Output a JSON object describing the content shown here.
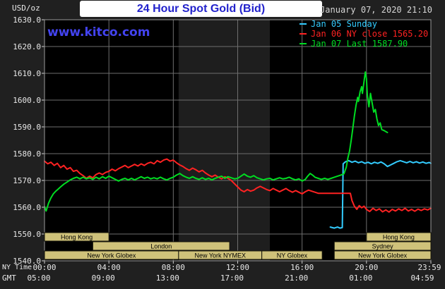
{
  "header": {
    "units_label": "USD/oz",
    "title": "24 Hour Spot Gold (Bid)",
    "datetime": "January 07, 2020 21:10",
    "watermark": "www.kitco.com"
  },
  "legend": [
    {
      "label": "Jan 05 Sunday",
      "color": "#33ccff"
    },
    {
      "label": "Jan 06 NY close 1565.20",
      "color": "#ff2222"
    },
    {
      "label": "Jan 07 Last 1587.90",
      "color": "#00dd22"
    }
  ],
  "colors": {
    "page_bg": "#202020",
    "plot_bg": "#000000",
    "band": "#1e1e1e",
    "grid": "#6e6e6e",
    "border": "#9a9a9a",
    "tick": "#d0d0d0",
    "session_bg": "#cfc27a",
    "session_border": "#14140a",
    "session_text": "#000000",
    "title_blue": "#2222cc",
    "watermark_blue": "#4343f0",
    "axis_text": "#e8e8e8",
    "datetime_text": "#d6d6d6"
  },
  "sessions": {
    "rows": [
      [
        {
          "label": "Hong Kong",
          "start": 0,
          "end": 4
        },
        {
          "label": "Hong Kong",
          "start": 20,
          "end": 24
        }
      ],
      [
        {
          "label": "London",
          "start": 3,
          "end": 11.5
        },
        {
          "label": "Sydney",
          "start": 18,
          "end": 24
        }
      ],
      [
        {
          "label": "New York Globex",
          "start": 0,
          "end": 8.33
        },
        {
          "label": "New York NYMEX",
          "start": 8.33,
          "end": 13.5
        },
        {
          "label": "NY Globex",
          "start": 13.5,
          "end": 17.25
        },
        {
          "label": "New York Globex",
          "start": 18,
          "end": 24
        }
      ]
    ]
  },
  "chart_data": {
    "type": "line",
    "title": "24 Hour Spot Gold (Bid)",
    "ylabel": "USD/oz",
    "xlabel": "NY Time / GMT",
    "ylim": [
      1540,
      1630
    ],
    "xlim_hours": [
      0,
      24
    ],
    "grid": true,
    "legend_position": "top-right",
    "axis_row_labels": {
      "ny": "NY Time",
      "gmt": "GMT"
    },
    "y_ticks": [
      1630,
      1620,
      1610,
      1600,
      1590,
      1580,
      1570,
      1560,
      1550,
      1540
    ],
    "x_ticks": [
      {
        "hour": 0,
        "ny": "00:00",
        "gmt": "05:00"
      },
      {
        "hour": 4,
        "ny": "04:00",
        "gmt": "09:00"
      },
      {
        "hour": 8,
        "ny": "08:00",
        "gmt": "13:00"
      },
      {
        "hour": 12,
        "ny": "12:00",
        "gmt": "17:00"
      },
      {
        "hour": 16,
        "ny": "16:00",
        "gmt": "21:00"
      },
      {
        "hour": 20,
        "ny": "20:00",
        "gmt": "01:00"
      },
      {
        "hour": 24,
        "ny": "23:59",
        "gmt": "04:59"
      }
    ],
    "nymex_band_hours": [
      8.33,
      14.0
    ],
    "series": [
      {
        "name": "Jan 05 Sunday",
        "color": "#33ccff",
        "last_value": null,
        "points": [
          [
            17.75,
            1552.6
          ],
          [
            18.0,
            1552.2
          ],
          [
            18.2,
            1552.6
          ],
          [
            18.35,
            1552.2
          ],
          [
            18.5,
            1552.4
          ],
          [
            18.55,
            1576.2
          ],
          [
            18.7,
            1577.0
          ],
          [
            18.9,
            1577.4
          ],
          [
            19.1,
            1576.8
          ],
          [
            19.3,
            1577.2
          ],
          [
            19.5,
            1576.6
          ],
          [
            19.7,
            1577.0
          ],
          [
            19.9,
            1576.4
          ],
          [
            20.1,
            1576.8
          ],
          [
            20.3,
            1576.2
          ],
          [
            20.5,
            1576.8
          ],
          [
            20.7,
            1576.4
          ],
          [
            20.9,
            1576.9
          ],
          [
            21.1,
            1576.2
          ],
          [
            21.3,
            1575.2
          ],
          [
            21.5,
            1575.8
          ],
          [
            21.7,
            1576.4
          ],
          [
            21.9,
            1577.0
          ],
          [
            22.1,
            1577.4
          ],
          [
            22.3,
            1577.0
          ],
          [
            22.5,
            1576.6
          ],
          [
            22.7,
            1577.1
          ],
          [
            22.9,
            1576.6
          ],
          [
            23.1,
            1577.0
          ],
          [
            23.3,
            1576.5
          ],
          [
            23.5,
            1576.9
          ],
          [
            23.7,
            1576.4
          ],
          [
            23.9,
            1576.7
          ],
          [
            24,
            1576.4
          ]
        ]
      },
      {
        "name": "Jan 06 NY close 1565.20",
        "color": "#ff2222",
        "last_value": 1565.2,
        "points": [
          [
            0,
            1577.2
          ],
          [
            0.2,
            1576.2
          ],
          [
            0.4,
            1576.8
          ],
          [
            0.6,
            1575.6
          ],
          [
            0.8,
            1576.4
          ],
          [
            1,
            1574.8
          ],
          [
            1.2,
            1575.6
          ],
          [
            1.4,
            1574.2
          ],
          [
            1.6,
            1574.8
          ],
          [
            1.8,
            1573.4
          ],
          [
            2,
            1573.8
          ],
          [
            2.2,
            1572.6
          ],
          [
            2.4,
            1571.8
          ],
          [
            2.6,
            1570.8
          ],
          [
            2.8,
            1571.6
          ],
          [
            3,
            1571.0
          ],
          [
            3.2,
            1572.2
          ],
          [
            3.4,
            1572.8
          ],
          [
            3.6,
            1572.2
          ],
          [
            3.8,
            1573.0
          ],
          [
            4,
            1573.4
          ],
          [
            4.2,
            1574.2
          ],
          [
            4.4,
            1573.6
          ],
          [
            4.6,
            1574.4
          ],
          [
            4.8,
            1575.0
          ],
          [
            5,
            1575.6
          ],
          [
            5.2,
            1574.8
          ],
          [
            5.4,
            1575.4
          ],
          [
            5.6,
            1576.0
          ],
          [
            5.8,
            1575.4
          ],
          [
            6,
            1576.2
          ],
          [
            6.2,
            1575.6
          ],
          [
            6.4,
            1576.4
          ],
          [
            6.6,
            1576.8
          ],
          [
            6.8,
            1576.2
          ],
          [
            7,
            1577.4
          ],
          [
            7.2,
            1576.8
          ],
          [
            7.4,
            1577.6
          ],
          [
            7.6,
            1578.0
          ],
          [
            7.8,
            1577.2
          ],
          [
            8,
            1577.6
          ],
          [
            8.2,
            1576.6
          ],
          [
            8.4,
            1575.8
          ],
          [
            8.6,
            1575.2
          ],
          [
            8.8,
            1574.4
          ],
          [
            9,
            1573.8
          ],
          [
            9.2,
            1574.6
          ],
          [
            9.4,
            1574.0
          ],
          [
            9.6,
            1573.2
          ],
          [
            9.8,
            1573.8
          ],
          [
            10,
            1572.8
          ],
          [
            10.2,
            1572.0
          ],
          [
            10.4,
            1571.4
          ],
          [
            10.6,
            1572.0
          ],
          [
            10.8,
            1571.2
          ],
          [
            11,
            1570.6
          ],
          [
            11.2,
            1571.4
          ],
          [
            11.4,
            1570.8
          ],
          [
            11.6,
            1570.0
          ],
          [
            11.8,
            1568.8
          ],
          [
            12,
            1567.6
          ],
          [
            12.2,
            1566.4
          ],
          [
            12.4,
            1565.8
          ],
          [
            12.6,
            1566.6
          ],
          [
            12.8,
            1566.0
          ],
          [
            13,
            1566.4
          ],
          [
            13.2,
            1567.2
          ],
          [
            13.4,
            1567.8
          ],
          [
            13.6,
            1567.2
          ],
          [
            13.8,
            1566.6
          ],
          [
            14,
            1566.2
          ],
          [
            14.2,
            1567.0
          ],
          [
            14.4,
            1566.4
          ],
          [
            14.6,
            1565.8
          ],
          [
            14.8,
            1566.4
          ],
          [
            15,
            1567.0
          ],
          [
            15.2,
            1566.2
          ],
          [
            15.4,
            1565.6
          ],
          [
            15.6,
            1566.2
          ],
          [
            15.8,
            1565.6
          ],
          [
            16,
            1565.0
          ],
          [
            16.2,
            1565.8
          ],
          [
            16.4,
            1566.4
          ],
          [
            16.6,
            1566.0
          ],
          [
            16.8,
            1565.6
          ],
          [
            17,
            1565.2
          ],
          [
            19,
            1565.2
          ],
          [
            19.1,
            1562.5
          ],
          [
            19.25,
            1560.4
          ],
          [
            19.4,
            1559.2
          ],
          [
            19.55,
            1560.6
          ],
          [
            19.7,
            1559.8
          ],
          [
            19.85,
            1560.4
          ],
          [
            20,
            1559.2
          ],
          [
            20.2,
            1558.4
          ],
          [
            20.4,
            1559.6
          ],
          [
            20.6,
            1558.8
          ],
          [
            20.8,
            1559.4
          ],
          [
            21,
            1558.3
          ],
          [
            21.2,
            1559.0
          ],
          [
            21.4,
            1558.2
          ],
          [
            21.6,
            1559.2
          ],
          [
            21.8,
            1558.6
          ],
          [
            22,
            1559.4
          ],
          [
            22.2,
            1558.8
          ],
          [
            22.4,
            1559.6
          ],
          [
            22.6,
            1558.6
          ],
          [
            22.8,
            1559.2
          ],
          [
            23,
            1558.5
          ],
          [
            23.2,
            1559.3
          ],
          [
            23.4,
            1558.8
          ],
          [
            23.6,
            1559.4
          ],
          [
            23.8,
            1559.0
          ],
          [
            24,
            1559.6
          ]
        ]
      },
      {
        "name": "Jan 07 Last 1587.90",
        "color": "#00dd22",
        "last_value": 1587.9,
        "points": [
          [
            0,
            1560.2
          ],
          [
            0.1,
            1558.6
          ],
          [
            0.25,
            1561.5
          ],
          [
            0.4,
            1563.5
          ],
          [
            0.55,
            1565.0
          ],
          [
            0.7,
            1566.0
          ],
          [
            0.85,
            1566.8
          ],
          [
            1,
            1567.6
          ],
          [
            1.2,
            1568.6
          ],
          [
            1.4,
            1569.4
          ],
          [
            1.6,
            1570.2
          ],
          [
            1.8,
            1570.8
          ],
          [
            2,
            1571.2
          ],
          [
            2.2,
            1570.6
          ],
          [
            2.4,
            1571.2
          ],
          [
            2.6,
            1570.6
          ],
          [
            2.8,
            1571.0
          ],
          [
            3,
            1570.4
          ],
          [
            3.2,
            1571.2
          ],
          [
            3.4,
            1570.6
          ],
          [
            3.6,
            1571.4
          ],
          [
            3.8,
            1570.8
          ],
          [
            4,
            1571.6
          ],
          [
            4.2,
            1571.0
          ],
          [
            4.4,
            1570.4
          ],
          [
            4.6,
            1569.8
          ],
          [
            4.8,
            1570.4
          ],
          [
            5,
            1570.8
          ],
          [
            5.2,
            1570.2
          ],
          [
            5.4,
            1570.8
          ],
          [
            5.6,
            1570.2
          ],
          [
            5.8,
            1570.8
          ],
          [
            6,
            1571.4
          ],
          [
            6.2,
            1570.8
          ],
          [
            6.4,
            1571.2
          ],
          [
            6.6,
            1570.6
          ],
          [
            6.8,
            1571.0
          ],
          [
            7,
            1570.6
          ],
          [
            7.2,
            1571.2
          ],
          [
            7.4,
            1570.6
          ],
          [
            7.6,
            1570.2
          ],
          [
            7.8,
            1570.8
          ],
          [
            8,
            1571.2
          ],
          [
            8.2,
            1572.0
          ],
          [
            8.4,
            1572.6
          ],
          [
            8.6,
            1571.8
          ],
          [
            8.8,
            1571.2
          ],
          [
            9,
            1570.8
          ],
          [
            9.2,
            1571.4
          ],
          [
            9.4,
            1570.8
          ],
          [
            9.6,
            1570.4
          ],
          [
            9.8,
            1571.0
          ],
          [
            10,
            1570.4
          ],
          [
            10.2,
            1570.8
          ],
          [
            10.4,
            1570.2
          ],
          [
            10.6,
            1570.8
          ],
          [
            10.8,
            1571.2
          ],
          [
            11,
            1571.6
          ],
          [
            11.2,
            1570.8
          ],
          [
            11.4,
            1571.4
          ],
          [
            11.6,
            1571.0
          ],
          [
            11.8,
            1570.6
          ],
          [
            12,
            1570.8
          ],
          [
            12.2,
            1571.6
          ],
          [
            12.4,
            1572.4
          ],
          [
            12.6,
            1571.6
          ],
          [
            12.8,
            1571.2
          ],
          [
            13,
            1571.8
          ],
          [
            13.2,
            1571.0
          ],
          [
            13.4,
            1570.6
          ],
          [
            13.6,
            1570.2
          ],
          [
            13.8,
            1570.6
          ],
          [
            14,
            1570.8
          ],
          [
            14.2,
            1570.2
          ],
          [
            14.4,
            1570.6
          ],
          [
            14.6,
            1571.0
          ],
          [
            14.8,
            1570.6
          ],
          [
            15,
            1570.8
          ],
          [
            15.2,
            1571.2
          ],
          [
            15.4,
            1570.6
          ],
          [
            15.6,
            1570.2
          ],
          [
            15.8,
            1570.6
          ],
          [
            16,
            1569.8
          ],
          [
            16.2,
            1570.4
          ],
          [
            16.35,
            1571.6
          ],
          [
            16.5,
            1572.6
          ],
          [
            16.65,
            1572.0
          ],
          [
            16.8,
            1571.2
          ],
          [
            17,
            1570.8
          ],
          [
            17.2,
            1570.4
          ],
          [
            17.4,
            1570.8
          ],
          [
            17.6,
            1570.4
          ],
          [
            17.8,
            1570.8
          ],
          [
            18,
            1571.2
          ],
          [
            18.2,
            1571.6
          ],
          [
            18.4,
            1572.0
          ],
          [
            18.6,
            1572.5
          ],
          [
            18.75,
            1575.0
          ],
          [
            18.85,
            1578.5
          ],
          [
            18.95,
            1581.0
          ],
          [
            19.05,
            1585.0
          ],
          [
            19.15,
            1589.5
          ],
          [
            19.25,
            1594.0
          ],
          [
            19.35,
            1598.0
          ],
          [
            19.45,
            1601.0
          ],
          [
            19.5,
            1599.5
          ],
          [
            19.6,
            1603.0
          ],
          [
            19.7,
            1605.0
          ],
          [
            19.75,
            1602.5
          ],
          [
            19.85,
            1607.0
          ],
          [
            19.93,
            1610.5
          ],
          [
            20,
            1608.0
          ],
          [
            20.05,
            1602.0
          ],
          [
            20.15,
            1597.5
          ],
          [
            20.25,
            1602.5
          ],
          [
            20.35,
            1599.0
          ],
          [
            20.45,
            1595.5
          ],
          [
            20.55,
            1596.5
          ],
          [
            20.65,
            1593.0
          ],
          [
            20.75,
            1590.5
          ],
          [
            20.85,
            1591.5
          ],
          [
            20.95,
            1589.0
          ],
          [
            21.1,
            1588.6
          ],
          [
            21.3,
            1587.9
          ]
        ]
      }
    ]
  }
}
